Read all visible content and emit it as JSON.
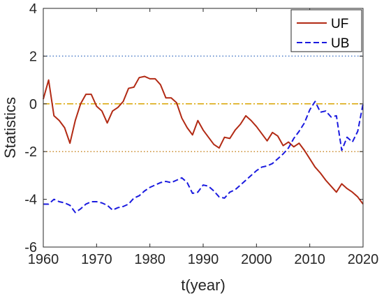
{
  "chart_data": {
    "type": "line",
    "title": "",
    "xlabel": "t(year)",
    "ylabel": "Statistics",
    "xlim": [
      1960,
      2020
    ],
    "ylim": [
      -6,
      4
    ],
    "xticks": [
      1960,
      1970,
      1980,
      1990,
      2000,
      2010,
      2020
    ],
    "yticks": [
      -6,
      -4,
      -2,
      0,
      2,
      4
    ],
    "grid": false,
    "legend_position": "top-right",
    "reference_lines": [
      {
        "y": 2,
        "color": "#4d7cc7",
        "style": "dotted"
      },
      {
        "y": 0,
        "color": "#d9a400",
        "style": "dashdot"
      },
      {
        "y": -2,
        "color": "#c98a2a",
        "style": "dotted"
      }
    ],
    "series": [
      {
        "name": "UF",
        "color": "#b22a14",
        "style": "solid",
        "x": [
          1960,
          1961,
          1962,
          1963,
          1964,
          1965,
          1966,
          1967,
          1968,
          1969,
          1970,
          1971,
          1972,
          1973,
          1974,
          1975,
          1976,
          1977,
          1978,
          1979,
          1980,
          1981,
          1982,
          1983,
          1984,
          1985,
          1986,
          1987,
          1988,
          1989,
          1990,
          1991,
          1992,
          1993,
          1994,
          1995,
          1996,
          1997,
          1998,
          1999,
          2000,
          2001,
          2002,
          2003,
          2004,
          2005,
          2006,
          2007,
          2008,
          2009,
          2010,
          2011,
          2012,
          2013,
          2014,
          2015,
          2016,
          2017,
          2018,
          2019,
          2020
        ],
        "y": [
          0.2,
          1.0,
          -0.5,
          -0.7,
          -1.0,
          -1.65,
          -0.7,
          0.0,
          0.4,
          0.4,
          -0.1,
          -0.3,
          -0.8,
          -0.3,
          -0.15,
          0.1,
          0.65,
          0.7,
          1.1,
          1.15,
          1.05,
          1.05,
          0.8,
          0.25,
          0.25,
          0.05,
          -0.6,
          -1.0,
          -1.3,
          -0.7,
          -1.1,
          -1.4,
          -1.7,
          -1.85,
          -1.4,
          -1.45,
          -1.1,
          -0.85,
          -0.5,
          -0.7,
          -0.95,
          -1.25,
          -1.55,
          -1.2,
          -1.35,
          -1.75,
          -1.6,
          -1.8,
          -1.65,
          -1.95,
          -2.3,
          -2.65,
          -2.9,
          -3.2,
          -3.45,
          -3.7,
          -3.35,
          -3.55,
          -3.7,
          -3.9,
          -4.2
        ]
      },
      {
        "name": "UB",
        "color": "#1a1adf",
        "style": "dashed",
        "x": [
          1960,
          1961,
          1962,
          1963,
          1964,
          1965,
          1966,
          1967,
          1968,
          1969,
          1970,
          1971,
          1972,
          1973,
          1974,
          1975,
          1976,
          1977,
          1978,
          1979,
          1980,
          1981,
          1982,
          1983,
          1984,
          1985,
          1986,
          1987,
          1988,
          1989,
          1990,
          1991,
          1992,
          1993,
          1994,
          1995,
          1996,
          1997,
          1998,
          1999,
          2000,
          2001,
          2002,
          2003,
          2004,
          2005,
          2006,
          2007,
          2008,
          2009,
          2010,
          2011,
          2012,
          2013,
          2014,
          2015,
          2016,
          2017,
          2018,
          2019,
          2020
        ],
        "y": [
          -4.2,
          -4.2,
          -4.0,
          -4.1,
          -4.15,
          -4.25,
          -4.55,
          -4.4,
          -4.2,
          -4.1,
          -4.1,
          -4.15,
          -4.25,
          -4.45,
          -4.35,
          -4.3,
          -4.2,
          -3.95,
          -3.85,
          -3.65,
          -3.5,
          -3.4,
          -3.3,
          -3.25,
          -3.3,
          -3.2,
          -3.1,
          -3.3,
          -3.75,
          -3.7,
          -3.4,
          -3.45,
          -3.65,
          -3.9,
          -3.95,
          -3.7,
          -3.6,
          -3.4,
          -3.2,
          -3.0,
          -2.8,
          -2.65,
          -2.6,
          -2.5,
          -2.3,
          -2.1,
          -1.85,
          -1.45,
          -1.15,
          -0.8,
          -0.25,
          0.1,
          -0.35,
          -0.3,
          -0.55,
          -0.5,
          -1.95,
          -1.4,
          -1.6,
          -1.15,
          0.0
        ]
      }
    ]
  }
}
